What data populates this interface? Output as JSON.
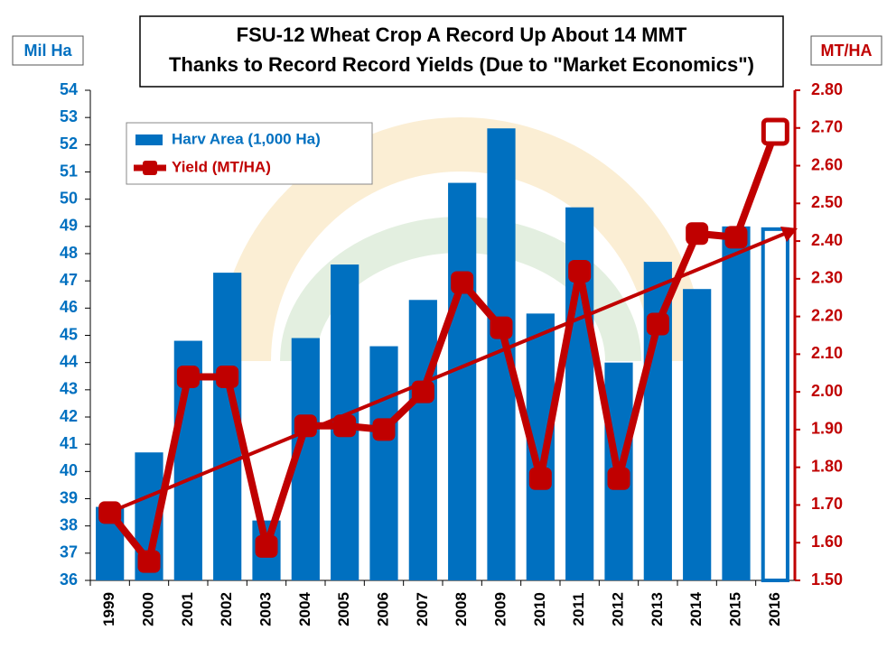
{
  "chart_data": {
    "type": "bar_line",
    "title": "FSU-12 Wheat Crop  A Record Up About 14 MMT",
    "subtitle": "Thanks to Record Record Yields (Due to \"Market Economics\")",
    "y_label": "Mil Ha",
    "y2_label": "MT/HA",
    "categories": [
      "1999",
      "2000",
      "2001",
      "2002",
      "2003",
      "2004",
      "2005",
      "2006",
      "2007",
      "2008",
      "2009",
      "2010",
      "2011",
      "2012",
      "2013",
      "2014",
      "2015",
      "2016"
    ],
    "series": [
      {
        "name": "Harv Area (1,000 Ha)",
        "color": "#0070c0",
        "kind": "bar",
        "fills": [
          "#0070c0",
          "#0070c0",
          "#0070c0",
          "#0070c0",
          "#0070c0",
          "#0070c0",
          "#0070c0",
          "#0070c0",
          "#0070c0",
          "#0070c0",
          "#0070c0",
          "#0070c0",
          "#0070c0",
          "#0070c0",
          "#0070c0",
          "#0070c0",
          "#0070c0",
          "#ffffff"
        ],
        "values": [
          38.7,
          40.7,
          44.8,
          47.3,
          38.2,
          44.9,
          47.6,
          44.6,
          46.3,
          50.6,
          52.6,
          45.8,
          49.7,
          44.0,
          47.7,
          46.7,
          49.0,
          48.9
        ]
      },
      {
        "name": "Yield (MT/HA)",
        "color": "#c00000",
        "kind": "line",
        "axis": "y2",
        "fills": [
          "#c00000",
          "#c00000",
          "#c00000",
          "#c00000",
          "#c00000",
          "#c00000",
          "#c00000",
          "#c00000",
          "#c00000",
          "#c00000",
          "#c00000",
          "#c00000",
          "#c00000",
          "#c00000",
          "#c00000",
          "#c00000",
          "#c00000",
          "#ffffff"
        ],
        "values": [
          1.68,
          1.55,
          2.04,
          2.04,
          1.59,
          1.91,
          1.91,
          1.9,
          2.0,
          2.29,
          2.17,
          1.77,
          2.32,
          1.77,
          2.18,
          2.42,
          2.41,
          2.69
        ]
      }
    ],
    "ylim": [
      36,
      54
    ],
    "yticks": [
      36,
      37,
      38,
      39,
      40,
      41,
      42,
      43,
      44,
      45,
      46,
      47,
      48,
      49,
      50,
      51,
      52,
      53,
      54
    ],
    "y2lim": [
      1.5,
      2.8
    ],
    "y2ticks": [
      {
        "value": 1.5,
        "label": "1.50"
      },
      {
        "value": 1.6,
        "label": "1.60"
      },
      {
        "value": 1.7,
        "label": "1.70"
      },
      {
        "value": 1.8,
        "label": "1.80"
      },
      {
        "value": 1.9,
        "label": "1.90"
      },
      {
        "value": 2.0,
        "label": "2.00"
      },
      {
        "value": 2.1,
        "label": "2.10"
      },
      {
        "value": 2.2,
        "label": "2.20"
      },
      {
        "value": 2.3,
        "label": "2.30"
      },
      {
        "value": 2.4,
        "label": "2.40"
      },
      {
        "value": 2.5,
        "label": "2.50"
      },
      {
        "value": 2.6,
        "label": "2.60"
      },
      {
        "value": 2.7,
        "label": "2.70"
      },
      {
        "value": 2.8,
        "label": "2.80"
      }
    ],
    "grid": false
  }
}
